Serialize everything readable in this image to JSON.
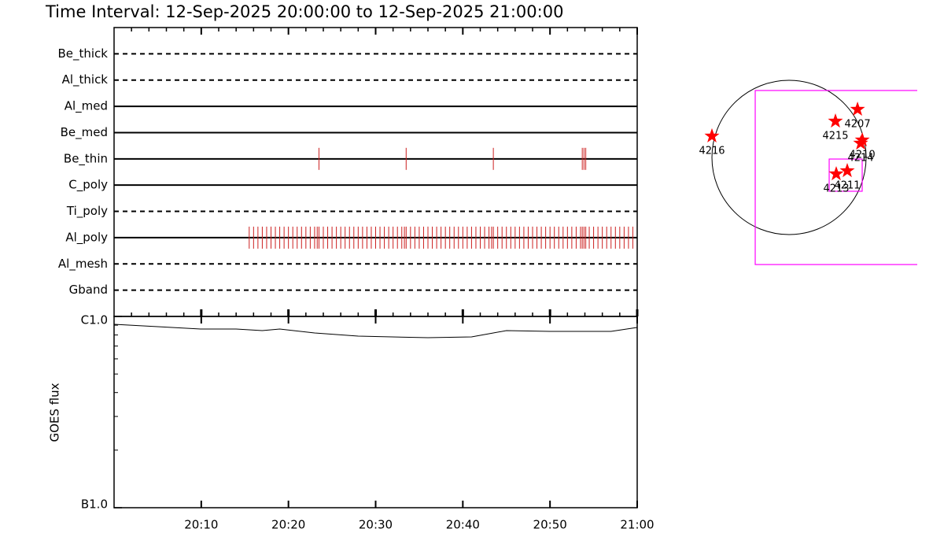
{
  "title": "Time Interval: 12-Sep-2025 20:00:00 to 12-Sep-2025 21:00:00",
  "chart_data": [
    {
      "type": "timeline",
      "xlim": [
        0,
        60
      ],
      "xticks": [
        10,
        20,
        30,
        40,
        50,
        60
      ],
      "xminorticks": [
        2,
        4,
        6,
        8,
        12,
        14,
        16,
        18,
        22,
        24,
        26,
        28,
        32,
        34,
        36,
        38,
        42,
        44,
        46,
        48,
        52,
        54,
        56,
        58
      ],
      "color": "#cc2020",
      "filters": [
        {
          "name": "Be_thick",
          "style": "dashed",
          "times": []
        },
        {
          "name": "Al_thick",
          "style": "dashed",
          "times": []
        },
        {
          "name": "Al_med",
          "style": "solid",
          "times": []
        },
        {
          "name": "Be_med",
          "style": "solid",
          "times": []
        },
        {
          "name": "Be_thin",
          "style": "solid",
          "times": [
            23.5,
            33.5,
            43.5,
            53.7,
            53.9,
            54.1
          ]
        },
        {
          "name": "C_poly",
          "style": "solid",
          "times": []
        },
        {
          "name": "Ti_poly",
          "style": "dashed",
          "times": []
        },
        {
          "name": "Al_poly",
          "style": "solid",
          "times": [
            15.5,
            16,
            16.5,
            17,
            17.5,
            18,
            18.5,
            19,
            19.5,
            20,
            20.5,
            21,
            21.5,
            22,
            22.5,
            23,
            23.3,
            23.5,
            24,
            24.5,
            25,
            25.5,
            26,
            26.5,
            27,
            27.5,
            28,
            28.5,
            29,
            29.5,
            30,
            30.5,
            31,
            31.5,
            32,
            32.5,
            33,
            33.3,
            33.5,
            34,
            34.5,
            35,
            35.5,
            36,
            36.5,
            37,
            37.5,
            38,
            38.5,
            39,
            39.5,
            40,
            40.5,
            41,
            41.5,
            42,
            42.5,
            43,
            43.3,
            43.5,
            44,
            44.5,
            45,
            45.5,
            46,
            46.5,
            47,
            47.5,
            48,
            48.5,
            49,
            49.5,
            50,
            50.5,
            51,
            51.5,
            52,
            52.5,
            53,
            53.5,
            53.7,
            53.9,
            54.1,
            54.5,
            55,
            55.5,
            56,
            56.5,
            57,
            57.5,
            58,
            58.5,
            59,
            59.5
          ]
        },
        {
          "name": "Al_mesh",
          "style": "dashed",
          "times": []
        },
        {
          "name": "Gband",
          "style": "dashed",
          "times": []
        }
      ]
    },
    {
      "type": "line",
      "ylabel": "GOES flux",
      "log_scale": true,
      "color": "#000000",
      "xlim": [
        0,
        60
      ],
      "xticks": [
        {
          "value": 10,
          "label": "20:10"
        },
        {
          "value": 20,
          "label": "20:20"
        },
        {
          "value": 30,
          "label": "20:30"
        },
        {
          "value": 40,
          "label": "20:40"
        },
        {
          "value": 50,
          "label": "20:50"
        },
        {
          "value": 60,
          "label": "21:00"
        }
      ],
      "ylim": [
        1e-07,
        1e-06
      ],
      "yticks": [
        {
          "value": 1e-07,
          "label": "B1.0"
        },
        {
          "value": 1e-06,
          "label": "C1.0"
        }
      ],
      "yminorticks": [
        2e-07,
        3e-07,
        4e-07,
        5e-07,
        6e-07,
        7e-07,
        8e-07,
        9e-07
      ],
      "x": [
        0,
        5,
        10,
        14,
        17,
        19,
        23,
        28,
        36,
        41,
        43,
        45,
        50,
        57,
        60
      ],
      "values": [
        9.1e-07,
        8.84e-07,
        8.59e-07,
        8.59e-07,
        8.43e-07,
        8.59e-07,
        8.2e-07,
        7.89e-07,
        7.74e-07,
        7.82e-07,
        8.12e-07,
        8.43e-07,
        8.35e-07,
        8.35e-07,
        8.76e-07
      ]
    },
    {
      "type": "map",
      "limb_radius": 960,
      "star_color": "#ff0000",
      "fov_color": "#ff00ff",
      "regions": [
        {
          "label": "4216",
          "x": -960,
          "y": 265
        },
        {
          "label": "4207",
          "x": 853,
          "y": 598
        },
        {
          "label": "4215",
          "x": 578,
          "y": 451
        },
        {
          "label": "4210",
          "x": 912,
          "y": 216
        },
        {
          "label": "4214",
          "x": 892,
          "y": 176
        },
        {
          "label": "4211",
          "x": 725,
          "y": -167
        },
        {
          "label": "4213",
          "x": 588,
          "y": -206
        }
      ],
      "fov": [
        {
          "x": [
            -421,
            2000
          ],
          "y": [
            -1333,
            833
          ]
        },
        {
          "x": [
            500,
            911
          ],
          "y": [
            -421,
            -20
          ]
        }
      ]
    }
  ]
}
